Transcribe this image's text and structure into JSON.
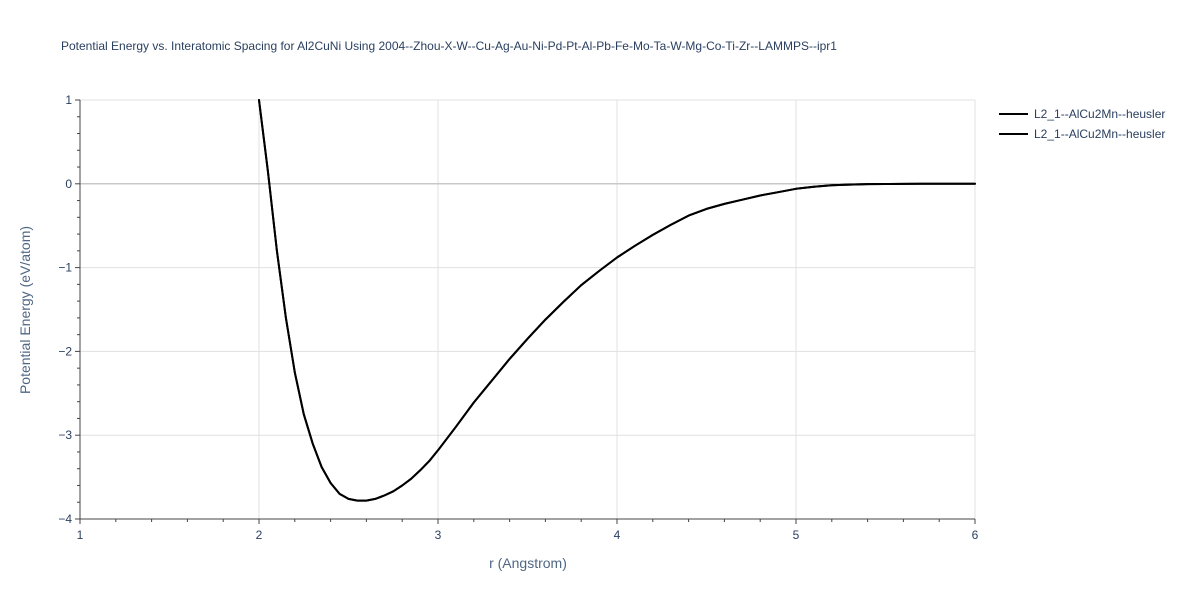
{
  "chart_data": {
    "type": "line",
    "title": "Potential Energy vs. Interatomic Spacing for Al2CuNi Using 2004--Zhou-X-W--Cu-Ag-Au-Ni-Pd-Pt-Al-Pb-Fe-Mo-Ta-W-Mg-Co-Ti-Zr--LAMMPS--ipr1",
    "xlabel": "r (Angstrom)",
    "ylabel": "Potential Energy (eV/atom)",
    "xlim": [
      1,
      6
    ],
    "ylim": [
      -4,
      1
    ],
    "xticks": [
      1,
      2,
      3,
      4,
      5,
      6
    ],
    "xtick_labels": [
      "1",
      "2",
      "3",
      "4",
      "5",
      "6"
    ],
    "yticks": [
      1,
      0,
      -1,
      -2,
      -3,
      -4
    ],
    "ytick_labels": [
      "1",
      "0",
      "−1",
      "−2",
      "−3",
      "−4"
    ],
    "grid": true,
    "legend_position": "top-right",
    "series": [
      {
        "name": "L2_1--AlCu2Mn--heusler",
        "color": "#000000",
        "x": [
          2.0,
          2.05,
          2.1,
          2.15,
          2.2,
          2.25,
          2.3,
          2.35,
          2.4,
          2.45,
          2.5,
          2.55,
          2.6,
          2.65,
          2.7,
          2.75,
          2.8,
          2.85,
          2.9,
          2.95,
          3.0,
          3.1,
          3.2,
          3.3,
          3.4,
          3.5,
          3.6,
          3.7,
          3.8,
          3.9,
          4.0,
          4.1,
          4.2,
          4.3,
          4.4,
          4.5,
          4.6,
          4.7,
          4.8,
          4.9,
          5.0,
          5.1,
          5.2,
          5.3,
          5.4,
          5.5,
          5.6,
          5.7,
          5.8,
          5.9,
          6.0
        ],
        "y": [
          1.0,
          0.15,
          -0.8,
          -1.6,
          -2.25,
          -2.75,
          -3.1,
          -3.38,
          -3.57,
          -3.7,
          -3.76,
          -3.78,
          -3.78,
          -3.76,
          -3.72,
          -3.67,
          -3.6,
          -3.52,
          -3.42,
          -3.31,
          -3.18,
          -2.9,
          -2.61,
          -2.35,
          -2.09,
          -1.85,
          -1.62,
          -1.41,
          -1.21,
          -1.04,
          -0.88,
          -0.74,
          -0.61,
          -0.49,
          -0.38,
          -0.3,
          -0.24,
          -0.19,
          -0.14,
          -0.1,
          -0.06,
          -0.035,
          -0.018,
          -0.009,
          -0.004,
          -0.002,
          -0.001,
          0.0,
          0.0,
          0.0,
          0.0
        ]
      },
      {
        "name": "L2_1--AlCu2Mn--heusler",
        "color": "#000000",
        "x": [
          2.0,
          2.05,
          2.1,
          2.15,
          2.2,
          2.25,
          2.3,
          2.35,
          2.4,
          2.45,
          2.5,
          2.55,
          2.6,
          2.65,
          2.7,
          2.75,
          2.8,
          2.85,
          2.9,
          2.95,
          3.0,
          3.1,
          3.2,
          3.3,
          3.4,
          3.5,
          3.6,
          3.7,
          3.8,
          3.9,
          4.0,
          4.1,
          4.2,
          4.3,
          4.4,
          4.5,
          4.6,
          4.7,
          4.8,
          4.9,
          5.0,
          5.1,
          5.2,
          5.3,
          5.4,
          5.5,
          5.6,
          5.7,
          5.8,
          5.9,
          6.0
        ],
        "y": [
          1.0,
          0.15,
          -0.8,
          -1.6,
          -2.25,
          -2.75,
          -3.1,
          -3.38,
          -3.57,
          -3.7,
          -3.76,
          -3.78,
          -3.78,
          -3.76,
          -3.72,
          -3.67,
          -3.6,
          -3.52,
          -3.42,
          -3.31,
          -3.18,
          -2.9,
          -2.61,
          -2.35,
          -2.09,
          -1.85,
          -1.62,
          -1.41,
          -1.21,
          -1.04,
          -0.88,
          -0.74,
          -0.61,
          -0.49,
          -0.38,
          -0.3,
          -0.24,
          -0.19,
          -0.14,
          -0.1,
          -0.06,
          -0.035,
          -0.018,
          -0.009,
          -0.004,
          -0.002,
          -0.001,
          0.0,
          0.0,
          0.0,
          0.0
        ]
      }
    ]
  }
}
